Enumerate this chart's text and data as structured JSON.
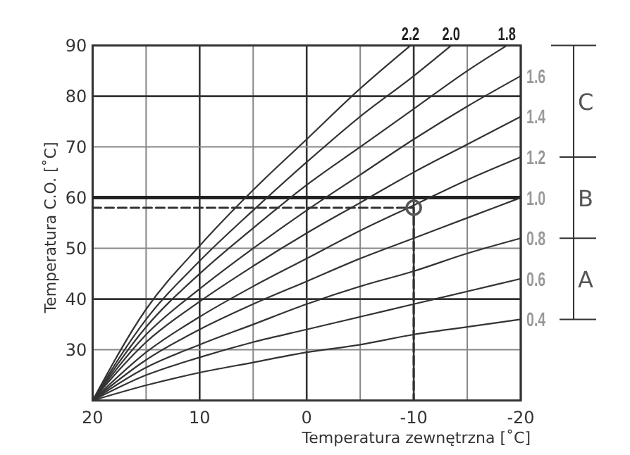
{
  "chart_data": {
    "type": "line",
    "xlabel": "Temperatura zewnętrzna [˚C]",
    "ylabel": "Temperatura C.O. [˚C]",
    "x": [
      20,
      15,
      10,
      5,
      0,
      -5,
      -10,
      -15,
      -20
    ],
    "xlim": [
      20,
      -20
    ],
    "ylim": [
      20,
      90
    ],
    "xticks": [
      20,
      {
        "value": 15,
        "label": null
      },
      10,
      {
        "value": 5,
        "label": null
      },
      0,
      {
        "value": -5,
        "label": null
      },
      -10,
      {
        "value": -15,
        "label": null
      },
      -20
    ],
    "yticks": [
      30,
      40,
      50,
      60,
      70,
      80,
      90
    ],
    "grid": true,
    "legend": "right",
    "marker": "none",
    "line_style": "solid",
    "series": [
      {
        "name": "0.4",
        "color": "#333333",
        "values": [
          20,
          23,
          25.5,
          27.5,
          29.5,
          31,
          33,
          34.5,
          36
        ]
      },
      {
        "name": "0.6",
        "color": "#333333",
        "values": [
          20,
          25,
          28.5,
          31.5,
          34,
          36.5,
          39,
          41.5,
          44
        ]
      },
      {
        "name": "0.8",
        "color": "#333333",
        "values": [
          20,
          26.5,
          31,
          35,
          39,
          42.5,
          45.5,
          49,
          52
        ]
      },
      {
        "name": "1.0",
        "color": "#333333",
        "values": [
          20,
          28,
          34,
          39,
          43.5,
          48,
          52,
          56,
          60
        ]
      },
      {
        "name": "1.2",
        "color": "#333333",
        "values": [
          20,
          29.5,
          36.5,
          42.5,
          48,
          53.5,
          58.5,
          63.5,
          68
        ]
      },
      {
        "name": "1.4",
        "color": "#333333",
        "values": [
          20,
          31.5,
          39.5,
          46.5,
          53,
          59,
          65,
          70.5,
          76
        ]
      },
      {
        "name": "1.6",
        "color": "#333333",
        "values": [
          20,
          33,
          42,
          50,
          57.5,
          64.5,
          71.5,
          78,
          84
        ]
      },
      {
        "name": "1.8",
        "color": "#333333",
        "x": [
          20,
          15,
          10,
          5,
          0,
          -5,
          -10,
          -15,
          -18.7
        ],
        "values": [
          20,
          34.5,
          45,
          54,
          62.5,
          70,
          77.5,
          85,
          90
        ]
      },
      {
        "name": "2.0",
        "color": "#333333",
        "x": [
          20,
          15,
          10,
          5,
          0,
          -5,
          -10,
          -13.5
        ],
        "values": [
          20,
          36,
          47.5,
          57.5,
          67,
          76,
          84,
          90
        ]
      },
      {
        "name": "2.2",
        "color": "#333333",
        "x": [
          20,
          15,
          10,
          5,
          0,
          -5,
          -9.7
        ],
        "values": [
          20,
          38,
          50.5,
          61.5,
          71.5,
          81.5,
          90
        ]
      },
      {
        "type": "line",
        "color": "#333333",
        "line_style": "dashed",
        "x": [
          20,
          -10,
          -10
        ],
        "values": [
          58,
          58,
          20
        ]
      },
      {
        "type": "scatter",
        "color": "#555555",
        "marker": "circle",
        "x": [
          -10
        ],
        "values": [
          58
        ]
      }
    ],
    "ref_lines": [
      {
        "axis": "y",
        "value": 60,
        "color": "#222222"
      }
    ],
    "annotations": [
      "A",
      "B",
      "C"
    ]
  }
}
